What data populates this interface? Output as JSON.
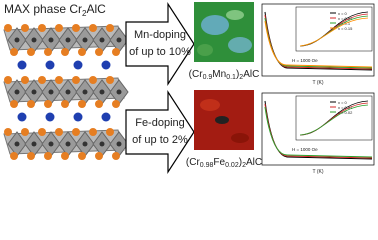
{
  "title": {
    "parts": [
      "MAX phase Cr",
      "2",
      "AlC"
    ]
  },
  "arrows": [
    {
      "lines": [
        "Mn-doping",
        "of up to 10%"
      ]
    },
    {
      "lines": [
        "Fe-doping",
        "of up to 2%"
      ]
    }
  ],
  "compounds": [
    {
      "parts": [
        "(Cr",
        "0.9",
        "Mn",
        "0.1",
        ")",
        "2",
        "AlC"
      ]
    },
    {
      "parts": [
        "(Cr",
        "0.98",
        "Fe",
        "0.02",
        ")",
        "2",
        "AlC"
      ]
    }
  ],
  "plots": [
    {
      "field_label": "H = 1000 Oe",
      "x_label": "T (K)",
      "legend": [
        "x = 0",
        "x = 0.05",
        "x = 0.1",
        "x = 0.15"
      ]
    },
    {
      "field_label": "H = 1000 Oe",
      "x_label": "T (K)",
      "legend": [
        "x = 0",
        "x = 0.01",
        "x = 0.02"
      ]
    }
  ]
}
